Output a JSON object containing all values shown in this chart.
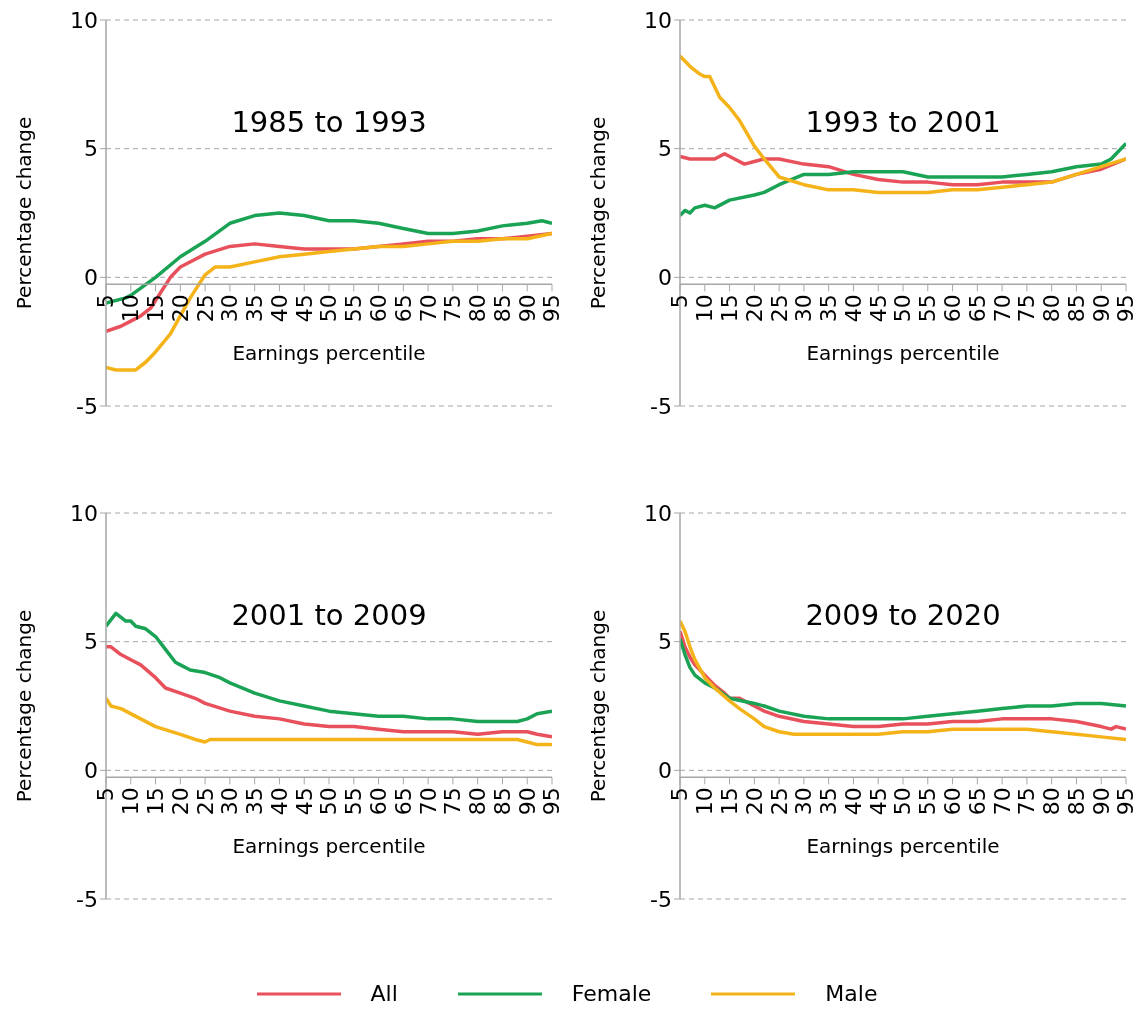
{
  "chart_data": [
    {
      "type": "line",
      "title": "1985 to 1993",
      "xlabel": "Earnings percentile",
      "ylabel": "Percentage change",
      "xlim": [
        5,
        95
      ],
      "xticks": [
        5,
        10,
        15,
        20,
        25,
        30,
        35,
        40,
        45,
        50,
        55,
        60,
        65,
        70,
        75,
        80,
        85,
        90,
        95
      ],
      "ylim": [
        -5,
        10
      ],
      "yticks": [
        -5,
        0,
        5,
        10
      ],
      "grid": "y",
      "line_style": "solid",
      "marker": "none",
      "legend": "bottom",
      "series": [
        {
          "name": "All",
          "color": "#e8505b",
          "x": [
            5,
            8,
            10,
            12,
            14,
            16,
            18,
            20,
            25,
            30,
            35,
            40,
            45,
            50,
            55,
            60,
            65,
            70,
            75,
            80,
            85,
            90,
            95
          ],
          "values": [
            -2.1,
            -1.9,
            -1.7,
            -1.5,
            -1.2,
            -0.6,
            0.0,
            0.4,
            0.9,
            1.2,
            1.3,
            1.2,
            1.1,
            1.1,
            1.1,
            1.2,
            1.3,
            1.4,
            1.4,
            1.5,
            1.5,
            1.6,
            1.7
          ]
        },
        {
          "name": "Female",
          "color": "#1aa355",
          "x": [
            5,
            9,
            10,
            15,
            20,
            25,
            30,
            35,
            40,
            45,
            50,
            55,
            60,
            65,
            70,
            75,
            80,
            85,
            90,
            93,
            95
          ],
          "values": [
            -1.0,
            -0.8,
            -0.7,
            0.0,
            0.8,
            1.4,
            2.1,
            2.4,
            2.5,
            2.4,
            2.2,
            2.2,
            2.1,
            1.9,
            1.7,
            1.7,
            1.8,
            2.0,
            2.1,
            2.2,
            2.1
          ]
        },
        {
          "name": "Male",
          "color": "#f5b31a",
          "x": [
            5,
            7,
            10,
            11,
            13,
            15,
            18,
            20,
            22,
            25,
            27,
            30,
            35,
            40,
            45,
            50,
            55,
            60,
            65,
            70,
            75,
            80,
            85,
            90,
            95
          ],
          "values": [
            -3.5,
            -3.6,
            -3.6,
            -3.6,
            -3.3,
            -2.9,
            -2.2,
            -1.5,
            -0.8,
            0.1,
            0.4,
            0.4,
            0.6,
            0.8,
            0.9,
            1.0,
            1.1,
            1.2,
            1.2,
            1.3,
            1.4,
            1.4,
            1.5,
            1.5,
            1.7
          ]
        }
      ]
    },
    {
      "type": "line",
      "title": "1993 to 2001",
      "xlabel": "Earnings percentile",
      "ylabel": "Percentage change",
      "xlim": [
        5,
        95
      ],
      "xticks": [
        5,
        10,
        15,
        20,
        25,
        30,
        35,
        40,
        45,
        50,
        55,
        60,
        65,
        70,
        75,
        80,
        85,
        90,
        95
      ],
      "ylim": [
        -5,
        10
      ],
      "yticks": [
        -5,
        0,
        5,
        10
      ],
      "grid": "y",
      "line_style": "solid",
      "marker": "none",
      "legend": "bottom",
      "series": [
        {
          "name": "All",
          "color": "#e8505b",
          "x": [
            5,
            7,
            8,
            10,
            12,
            14,
            16,
            18,
            20,
            22,
            25,
            30,
            35,
            40,
            45,
            50,
            55,
            60,
            65,
            70,
            75,
            80,
            85,
            90,
            95
          ],
          "values": [
            4.7,
            4.6,
            4.6,
            4.6,
            4.6,
            4.8,
            4.6,
            4.4,
            4.5,
            4.6,
            4.6,
            4.4,
            4.3,
            4.0,
            3.8,
            3.7,
            3.7,
            3.6,
            3.6,
            3.7,
            3.7,
            3.7,
            4.0,
            4.2,
            4.6
          ]
        },
        {
          "name": "Female",
          "color": "#1aa355",
          "x": [
            5,
            6,
            7,
            8,
            10,
            12,
            15,
            20,
            22,
            25,
            30,
            35,
            40,
            45,
            48,
            50,
            55,
            60,
            65,
            70,
            75,
            80,
            85,
            90,
            92,
            95
          ],
          "values": [
            2.4,
            2.6,
            2.5,
            2.7,
            2.8,
            2.7,
            3.0,
            3.2,
            3.3,
            3.6,
            4.0,
            4.0,
            4.1,
            4.1,
            4.1,
            4.1,
            3.9,
            3.9,
            3.9,
            3.9,
            4.0,
            4.1,
            4.3,
            4.4,
            4.6,
            5.2
          ]
        },
        {
          "name": "Male",
          "color": "#f5b31a",
          "x": [
            5,
            7,
            9,
            10,
            11,
            13,
            15,
            17,
            20,
            22,
            25,
            30,
            35,
            40,
            45,
            50,
            55,
            60,
            65,
            70,
            75,
            80,
            85,
            90,
            95
          ],
          "values": [
            8.6,
            8.2,
            7.9,
            7.8,
            7.8,
            7.0,
            6.6,
            6.1,
            5.1,
            4.6,
            3.9,
            3.6,
            3.4,
            3.4,
            3.3,
            3.3,
            3.3,
            3.4,
            3.4,
            3.5,
            3.6,
            3.7,
            4.0,
            4.3,
            4.6
          ]
        }
      ]
    },
    {
      "type": "line",
      "title": "2001 to 2009",
      "xlabel": "Earnings percentile",
      "ylabel": "Percentage change",
      "xlim": [
        5,
        95
      ],
      "xticks": [
        5,
        10,
        15,
        20,
        25,
        30,
        35,
        40,
        45,
        50,
        55,
        60,
        65,
        70,
        75,
        80,
        85,
        90,
        95
      ],
      "ylim": [
        -5,
        10
      ],
      "yticks": [
        -5,
        0,
        5,
        10
      ],
      "grid": "y",
      "line_style": "solid",
      "marker": "none",
      "legend": "bottom",
      "series": [
        {
          "name": "All",
          "color": "#e8505b",
          "x": [
            5,
            6,
            8,
            10,
            12,
            15,
            17,
            20,
            23,
            25,
            30,
            35,
            40,
            45,
            50,
            55,
            60,
            65,
            70,
            75,
            80,
            85,
            90,
            92,
            95
          ],
          "values": [
            4.8,
            4.8,
            4.5,
            4.3,
            4.1,
            3.6,
            3.2,
            3.0,
            2.8,
            2.6,
            2.3,
            2.1,
            2.0,
            1.8,
            1.7,
            1.7,
            1.6,
            1.5,
            1.5,
            1.5,
            1.4,
            1.5,
            1.5,
            1.4,
            1.3
          ]
        },
        {
          "name": "Female",
          "color": "#1aa355",
          "x": [
            5,
            7,
            9,
            10,
            11,
            13,
            15,
            17,
            19,
            20,
            22,
            25,
            28,
            30,
            35,
            40,
            45,
            50,
            55,
            60,
            65,
            70,
            75,
            80,
            85,
            88,
            90,
            92,
            95
          ],
          "values": [
            5.6,
            6.1,
            5.8,
            5.8,
            5.6,
            5.5,
            5.2,
            4.7,
            4.2,
            4.1,
            3.9,
            3.8,
            3.6,
            3.4,
            3.0,
            2.7,
            2.5,
            2.3,
            2.2,
            2.1,
            2.1,
            2.0,
            2.0,
            1.9,
            1.9,
            1.9,
            2.0,
            2.2,
            2.3
          ]
        },
        {
          "name": "Male",
          "color": "#f5b31a",
          "x": [
            5,
            6,
            8,
            9,
            12,
            15,
            20,
            23,
            25,
            26,
            30,
            40,
            50,
            60,
            70,
            80,
            85,
            88,
            90,
            92,
            95
          ],
          "values": [
            2.8,
            2.5,
            2.4,
            2.3,
            2.0,
            1.7,
            1.4,
            1.2,
            1.1,
            1.2,
            1.2,
            1.2,
            1.2,
            1.2,
            1.2,
            1.2,
            1.2,
            1.2,
            1.1,
            1.0,
            1.0
          ]
        }
      ]
    },
    {
      "type": "line",
      "title": "2009 to 2020",
      "xlabel": "Earnings percentile",
      "ylabel": "Percentage change",
      "xlim": [
        5,
        95
      ],
      "xticks": [
        5,
        10,
        15,
        20,
        25,
        30,
        35,
        40,
        45,
        50,
        55,
        60,
        65,
        70,
        75,
        80,
        85,
        90,
        95
      ],
      "ylim": [
        -5,
        10
      ],
      "yticks": [
        -5,
        0,
        5,
        10
      ],
      "grid": "y",
      "line_style": "solid",
      "marker": "none",
      "legend": "bottom",
      "series": [
        {
          "name": "All",
          "color": "#e8505b",
          "x": [
            5,
            6,
            7,
            8,
            10,
            12,
            14,
            15,
            17,
            20,
            22,
            25,
            30,
            35,
            40,
            45,
            50,
            55,
            60,
            65,
            70,
            75,
            80,
            85,
            90,
            92,
            93,
            95
          ],
          "values": [
            5.4,
            4.8,
            4.4,
            4.1,
            3.7,
            3.3,
            3.0,
            2.8,
            2.8,
            2.5,
            2.3,
            2.1,
            1.9,
            1.8,
            1.7,
            1.7,
            1.8,
            1.8,
            1.9,
            1.9,
            2.0,
            2.0,
            2.0,
            1.9,
            1.7,
            1.6,
            1.7,
            1.6
          ]
        },
        {
          "name": "Female",
          "color": "#1aa355",
          "x": [
            5,
            6,
            7,
            8,
            10,
            12,
            15,
            20,
            22,
            25,
            30,
            35,
            40,
            45,
            50,
            55,
            60,
            65,
            70,
            75,
            80,
            85,
            87,
            90,
            95
          ],
          "values": [
            5.1,
            4.5,
            4.0,
            3.7,
            3.4,
            3.2,
            2.8,
            2.6,
            2.5,
            2.3,
            2.1,
            2.0,
            2.0,
            2.0,
            2.0,
            2.1,
            2.2,
            2.3,
            2.4,
            2.5,
            2.5,
            2.6,
            2.6,
            2.6,
            2.5
          ]
        },
        {
          "name": "Male",
          "color": "#f5b31a",
          "x": [
            5,
            6,
            7,
            8,
            10,
            12,
            15,
            17,
            20,
            22,
            25,
            28,
            30,
            35,
            40,
            45,
            50,
            55,
            60,
            65,
            70,
            75,
            80,
            85,
            90,
            95
          ],
          "values": [
            5.8,
            5.4,
            4.8,
            4.3,
            3.6,
            3.2,
            2.7,
            2.4,
            2.0,
            1.7,
            1.5,
            1.4,
            1.4,
            1.4,
            1.4,
            1.4,
            1.5,
            1.5,
            1.6,
            1.6,
            1.6,
            1.6,
            1.5,
            1.4,
            1.3,
            1.2
          ]
        }
      ]
    }
  ]
}
